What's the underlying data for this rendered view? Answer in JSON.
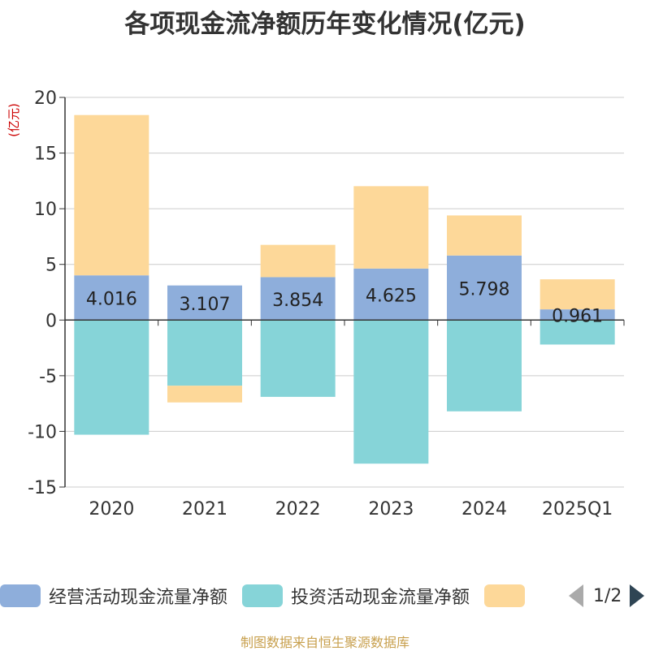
{
  "chart_data": {
    "type": "bar",
    "title": "各项现金流净额历年变化情况(亿元)",
    "ylabel": "(亿元)",
    "xlabel": "",
    "ylim": [
      -15,
      20
    ],
    "yticks": [
      20,
      15,
      10,
      5,
      0,
      -5,
      -10,
      -15
    ],
    "categories": [
      "2020",
      "2021",
      "2022",
      "2023",
      "2024",
      "2025Q1"
    ],
    "series": [
      {
        "name": "经营活动现金流量净额",
        "color": "#8eaedb",
        "values": [
          4.016,
          3.107,
          3.854,
          4.625,
          5.798,
          0.961
        ],
        "labels": [
          "4.016",
          "3.107",
          "3.854",
          "4.625",
          "5.798",
          "0.961"
        ]
      },
      {
        "name": "投资活动现金流量净额",
        "color": "#86d4d8",
        "values": [
          -10.3,
          -5.9,
          -6.9,
          -12.9,
          -8.2,
          -2.2
        ]
      },
      {
        "name": "",
        "color": "#fdd899",
        "values": [
          14.4,
          -1.5,
          2.9,
          7.4,
          3.6,
          2.7
        ]
      }
    ],
    "grid": true,
    "legend_position": "bottom"
  },
  "legend": {
    "items": [
      {
        "label": "经营活动现金流量净额",
        "color": "#8eaedb"
      },
      {
        "label": "投资活动现金流量净额",
        "color": "#86d4d8"
      },
      {
        "label": "",
        "color": "#fdd899"
      }
    ],
    "page_text": "1/2"
  },
  "source": "制图数据来自恒生聚源数据库"
}
